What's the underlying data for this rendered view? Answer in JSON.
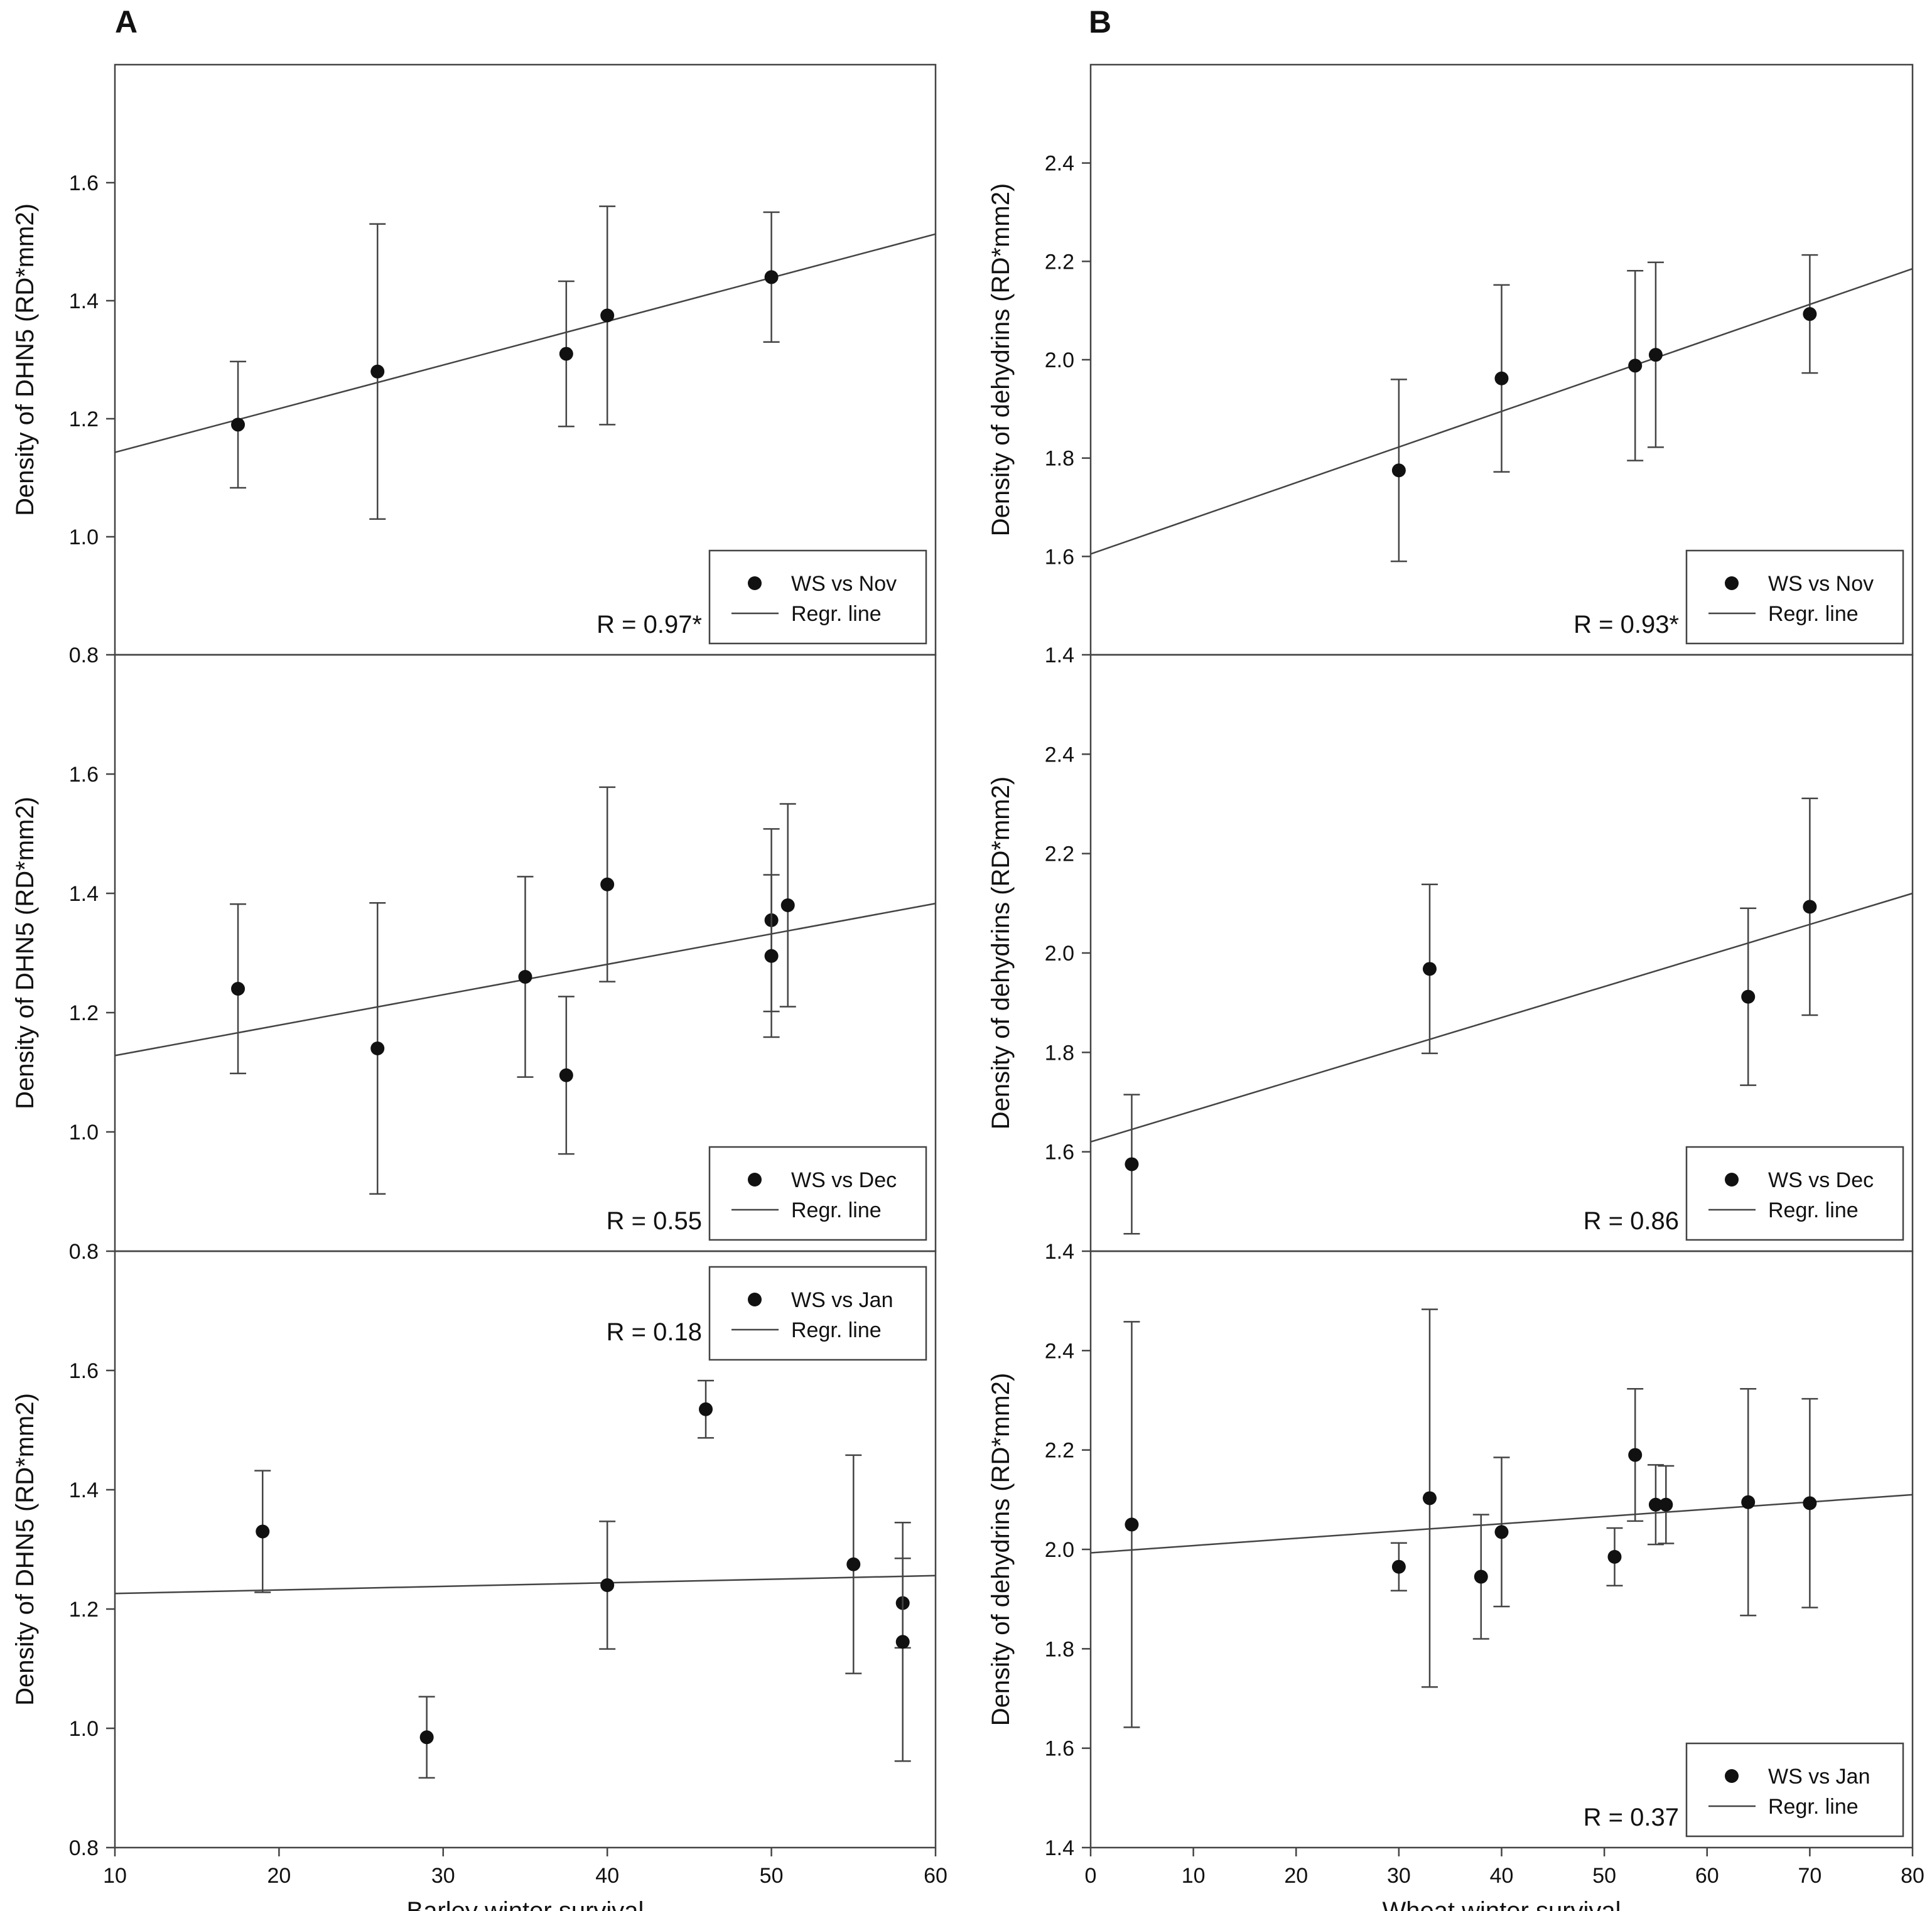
{
  "panels": [
    {
      "letter": "A"
    },
    {
      "letter": "B"
    }
  ],
  "chart_data": [
    {
      "type": "scatter",
      "panel": "A",
      "position": "top",
      "xlabel": "",
      "ylabel": "Density of DHN5 (RD*mm2)",
      "xlim": [
        10,
        60
      ],
      "ylim": [
        0.8,
        1.8
      ],
      "xticks": [],
      "yticks": [
        "0.8",
        "1.0",
        "1.2",
        "1.4",
        "1.6"
      ],
      "x": [
        17.5,
        26,
        37.5,
        40,
        50
      ],
      "y": [
        1.19,
        1.28,
        1.31,
        1.375,
        1.44
      ],
      "yerr": [
        0.107,
        0.25,
        0.123,
        0.185,
        0.11
      ],
      "regression": [
        [
          10,
          1.143
        ],
        [
          60,
          1.513
        ]
      ],
      "r_text": "R = 0.97*",
      "legend_position": "bottom-right",
      "legend": {
        "marker_label": "WS vs Nov",
        "line_label": "Regr. line"
      }
    },
    {
      "type": "scatter",
      "panel": "A",
      "position": "middle",
      "xlabel": "",
      "ylabel": "Density of DHN5 (RD*mm2)",
      "xlim": [
        10,
        60
      ],
      "ylim": [
        0.8,
        1.8
      ],
      "xticks": [],
      "yticks": [
        "0.8",
        "1.0",
        "1.2",
        "1.4",
        "1.6"
      ],
      "x": [
        17.5,
        26,
        35,
        37.5,
        40,
        50,
        50,
        51
      ],
      "y": [
        1.24,
        1.14,
        1.26,
        1.095,
        1.415,
        1.355,
        1.295,
        1.38
      ],
      "yerr": [
        0.142,
        0.244,
        0.168,
        0.132,
        0.163,
        0.153,
        0.136,
        0.17
      ],
      "regression": [
        [
          10,
          1.128
        ],
        [
          60,
          1.383
        ]
      ],
      "r_text": "R = 0.55",
      "legend_position": "bottom-right",
      "legend": {
        "marker_label": "WS vs Dec",
        "line_label": "Regr. line"
      }
    },
    {
      "type": "scatter",
      "panel": "A",
      "position": "bottom",
      "xlabel": "Barley winter survival",
      "ylabel": "Density of DHN5 (RD*mm2)",
      "xlim": [
        10,
        60
      ],
      "ylim": [
        0.8,
        1.8
      ],
      "xticks": [
        "10",
        "20",
        "30",
        "40",
        "50",
        "60"
      ],
      "yticks": [
        "0.8",
        "1.0",
        "1.2",
        "1.4",
        "1.6"
      ],
      "x": [
        19,
        29,
        40,
        46,
        55,
        58,
        58
      ],
      "y": [
        1.33,
        0.985,
        1.24,
        1.535,
        1.275,
        1.21,
        1.145
      ],
      "yerr": [
        0.102,
        0.068,
        0.107,
        0.048,
        0.183,
        0.075,
        0.2
      ],
      "regression": [
        [
          10,
          1.226
        ],
        [
          60,
          1.256
        ]
      ],
      "r_text": "R = 0.18",
      "legend_position": "top-right",
      "legend": {
        "marker_label": "WS vs Jan",
        "line_label": "Regr. line"
      }
    },
    {
      "type": "scatter",
      "panel": "B",
      "position": "top",
      "xlabel": "",
      "ylabel": "Density of dehydrins (RD*mm2)",
      "xlim": [
        0,
        80
      ],
      "ylim": [
        1.4,
        2.6
      ],
      "xticks": [],
      "yticks": [
        "1.4",
        "1.6",
        "1.8",
        "2.0",
        "2.2",
        "2.4"
      ],
      "x": [
        30,
        40,
        53,
        55,
        70
      ],
      "y": [
        1.775,
        1.962,
        1.988,
        2.01,
        2.093
      ],
      "yerr": [
        0.185,
        0.19,
        0.193,
        0.188,
        0.12
      ],
      "regression": [
        [
          0,
          1.605
        ],
        [
          80,
          2.185
        ]
      ],
      "r_text": "R = 0.93*",
      "legend_position": "bottom-right",
      "legend": {
        "marker_label": "WS vs Nov",
        "line_label": "Regr. line"
      }
    },
    {
      "type": "scatter",
      "panel": "B",
      "position": "middle",
      "xlabel": "",
      "ylabel": "Density of dehydrins (RD*mm2)",
      "xlim": [
        0,
        80
      ],
      "ylim": [
        1.4,
        2.6
      ],
      "xticks": [],
      "yticks": [
        "1.4",
        "1.6",
        "1.8",
        "2.0",
        "2.2",
        "2.4"
      ],
      "x": [
        4,
        33,
        64,
        70
      ],
      "y": [
        1.575,
        1.968,
        1.912,
        2.093
      ],
      "yerr": [
        0.14,
        0.17,
        0.178,
        0.218
      ],
      "regression": [
        [
          0,
          1.62
        ],
        [
          80,
          2.12
        ]
      ],
      "r_text": "R = 0.86",
      "legend_position": "bottom-right",
      "legend": {
        "marker_label": "WS vs Dec",
        "line_label": "Regr. line"
      }
    },
    {
      "type": "scatter",
      "panel": "B",
      "position": "bottom",
      "xlabel": "Wheat winter survival",
      "ylabel": "Density of dehydrins (RD*mm2)",
      "xlim": [
        0,
        80
      ],
      "ylim": [
        1.4,
        2.6
      ],
      "xticks": [
        "0",
        "10",
        "20",
        "30",
        "40",
        "50",
        "60",
        "70",
        "80"
      ],
      "yticks": [
        "1.4",
        "1.6",
        "1.8",
        "2.0",
        "2.2",
        "2.4"
      ],
      "x": [
        4,
        30,
        33,
        38,
        40,
        51,
        53,
        55,
        56,
        64,
        70
      ],
      "y": [
        2.05,
        1.965,
        2.103,
        1.945,
        2.035,
        1.985,
        2.19,
        2.09,
        2.09,
        2.095,
        2.093
      ],
      "yerr": [
        0.408,
        0.048,
        0.38,
        0.125,
        0.15,
        0.058,
        0.133,
        0.08,
        0.078,
        0.228,
        0.21
      ],
      "regression": [
        [
          0,
          1.993
        ],
        [
          80,
          2.11
        ]
      ],
      "r_text": "R = 0.37",
      "legend_position": "bottom-right",
      "legend": {
        "marker_label": "WS vs Jan",
        "line_label": "Regr. line"
      }
    }
  ]
}
